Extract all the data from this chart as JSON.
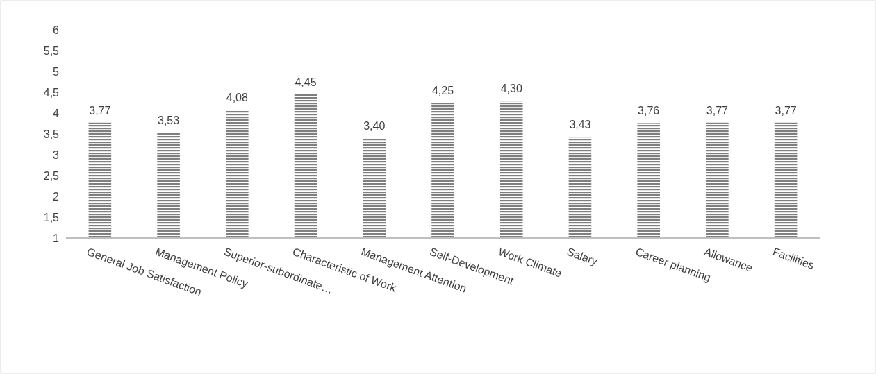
{
  "chart_data": {
    "type": "bar",
    "categories": [
      "General Job Satisfaction",
      "Management Policy",
      "Superior-subordinate…",
      "Characteristic of Work",
      "Management Attention",
      "Self-Development",
      "Work Climate",
      "Salary",
      "Career planning",
      "Allowance",
      "Facilities"
    ],
    "values": [
      3.77,
      3.53,
      4.08,
      4.45,
      3.4,
      4.25,
      4.3,
      3.43,
      3.76,
      3.77,
      3.77
    ],
    "value_labels": [
      "3,77",
      "3,53",
      "4,08",
      "4,45",
      "3,40",
      "4,25",
      "4,30",
      "3,43",
      "3,76",
      "3,77",
      "3,77"
    ],
    "color": "#7f7f7f",
    "ylim": [
      1,
      6
    ],
    "yticks": [
      1,
      {
        "value": 1.5,
        "label": "1,5"
      },
      2,
      {
        "value": 2.5,
        "label": "2,5"
      },
      3,
      {
        "value": 3.5,
        "label": "3,5"
      },
      4,
      {
        "value": 4.5,
        "label": "4,5"
      },
      5,
      {
        "value": 5.5,
        "label": "5,5"
      },
      6
    ],
    "grid": false
  }
}
